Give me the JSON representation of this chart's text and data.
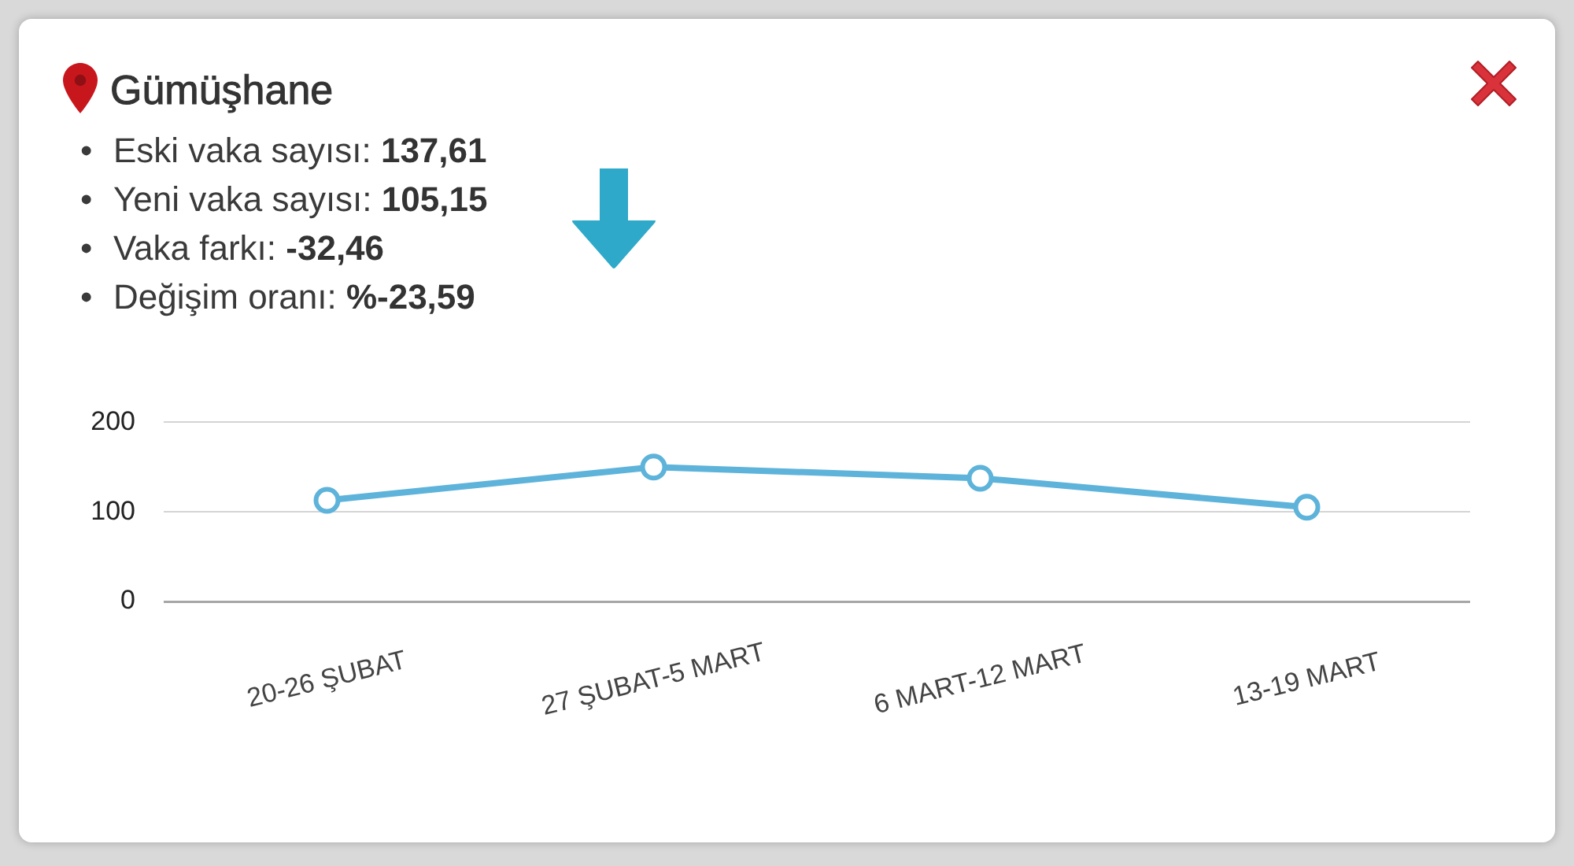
{
  "chart_data": {
    "type": "line",
    "title": "Gümüşhane",
    "annotations": [
      "• Eski vaka sayısı: 137,61",
      "• Yeni vaka sayısı: 105,15",
      "• Vaka farkı: -32,46",
      "• Değişim oranı: %-23,59"
    ],
    "categories": [
      "20-26 ŞUBAT",
      "27 ŞUBAT-5 MART",
      "6 MART-12 MART",
      "13-19 MART"
    ],
    "series": [
      {
        "color": "#5eb3da",
        "values": [
          113,
          150,
          137.61,
          105.15
        ]
      }
    ],
    "ylim": [
      0,
      200
    ],
    "yticks": [
      0,
      100,
      200
    ],
    "grid": "y",
    "marker": "circle",
    "line_style": "solid"
  }
}
